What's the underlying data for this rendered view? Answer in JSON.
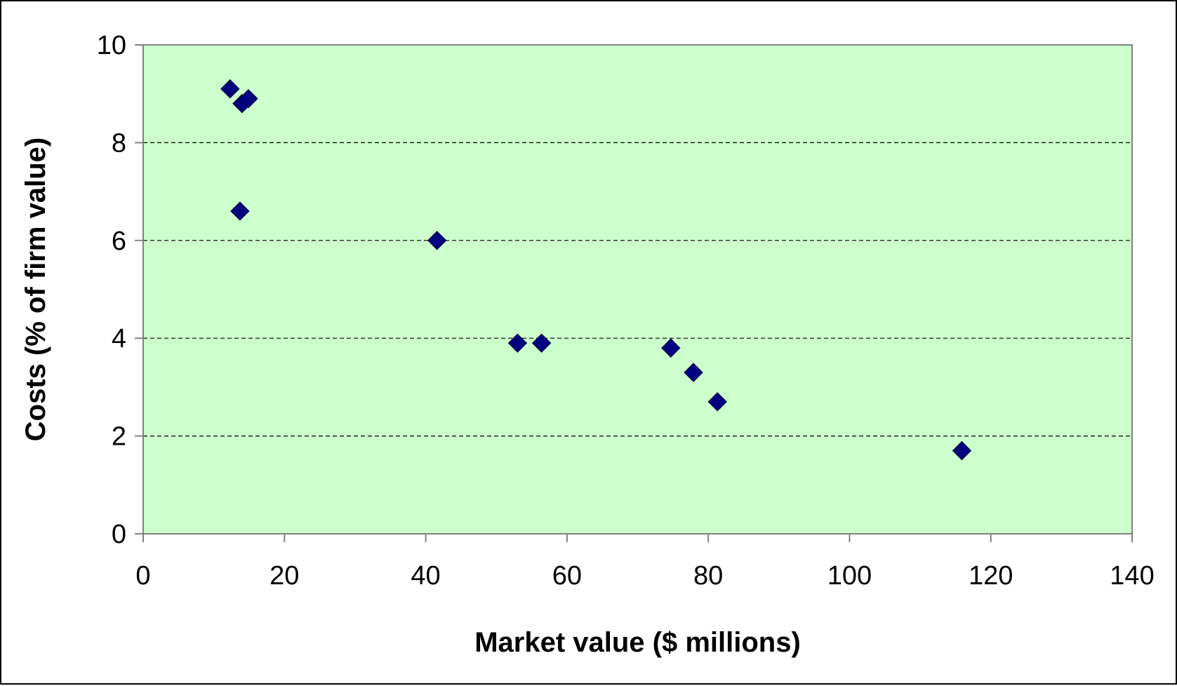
{
  "chart_data": {
    "type": "scatter",
    "title": "",
    "xlabel": "Market value ($ millions)",
    "ylabel": "Costs (% of firm value)",
    "xlim": [
      0,
      140
    ],
    "ylim": [
      0,
      10
    ],
    "x_ticks": [
      0,
      20,
      40,
      60,
      80,
      100,
      120,
      140
    ],
    "y_ticks": [
      0,
      2,
      4,
      6,
      8,
      10
    ],
    "x_tick_labels": [
      "0",
      "20",
      "40",
      "60",
      "80",
      "100",
      "120",
      "140"
    ],
    "y_tick_labels": [
      "0",
      "2",
      "4",
      "6",
      "8",
      "10"
    ],
    "grid": "horizontal dashed",
    "legend": "none",
    "marker": "diamond",
    "colors": {
      "plot_background": "#ccffcc",
      "marker_fill": "#000080",
      "grid_line": "#000000",
      "axis": "#808080"
    },
    "series": [
      {
        "x": [
          12.3,
          14.0,
          14.9,
          13.7,
          41.6,
          53.0,
          56.4,
          74.7,
          77.9,
          81.3,
          115.9
        ],
        "y": [
          9.1,
          8.8,
          8.9,
          6.6,
          6.0,
          3.9,
          3.9,
          3.8,
          3.3,
          2.7,
          1.7
        ]
      }
    ]
  }
}
